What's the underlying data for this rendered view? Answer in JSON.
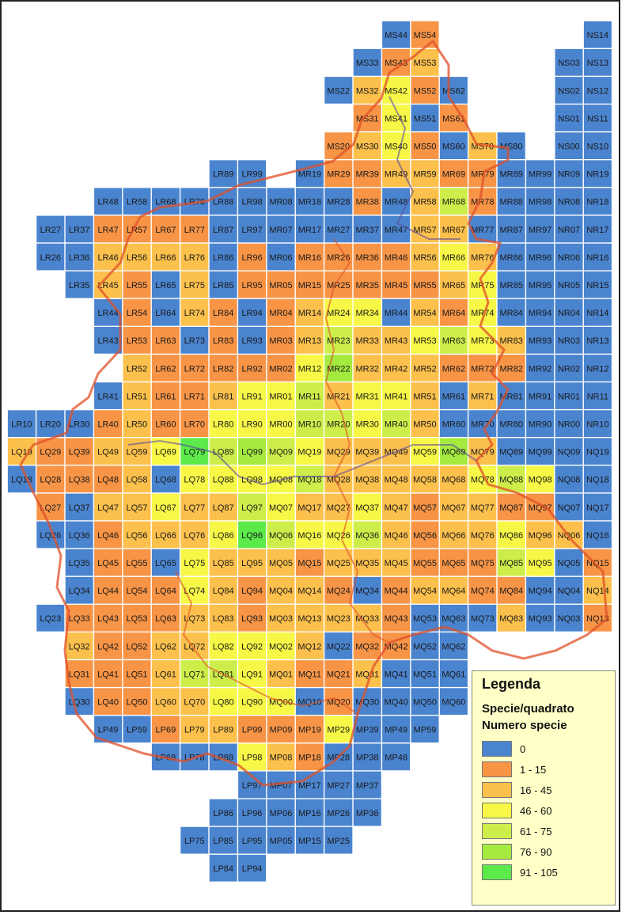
{
  "legend": {
    "title": "Legenda",
    "subtitle": "Specie/quadrato",
    "field": "Numero specie",
    "classes": [
      {
        "label": "0",
        "color": "#4a84cf"
      },
      {
        "label": "1 - 15",
        "color": "#f79446"
      },
      {
        "label": "16 - 45",
        "color": "#fcc04c"
      },
      {
        "label": "46 - 60",
        "color": "#f7f747"
      },
      {
        "label": "61 - 75",
        "color": "#cdee4a"
      },
      {
        "label": "76 - 90",
        "color": "#a4ea3f"
      },
      {
        "label": "91 - 105",
        "color": "#5cea4a"
      }
    ]
  },
  "boundary_color": "#e05028",
  "region_outline_color": "#5a4a9a",
  "grid_rows": [
    {
      "cells": [
        "MS44:0",
        "MS54:1",
        "NS14:0"
      ]
    },
    {
      "cells": [
        "MS33:0",
        "MS43:1",
        "MS53:2",
        "NS03:0",
        "NS13:0"
      ]
    },
    {
      "cells": [
        "MS22:0",
        "MS32:2",
        "MS42:3",
        "MS52:1",
        "MS62:0",
        "NS02:0",
        "NS12:0"
      ]
    },
    {
      "cells": [
        "MS31:1",
        "MS41:3",
        "MS51:0",
        "MS61:1",
        "NS01:0",
        "NS11:0"
      ]
    },
    {
      "cells": [
        "MS20:1",
        "MS30:2",
        "MS40:3",
        "MS50:1",
        "MS60:0",
        "MS70:2",
        "MS80:0",
        "NS00:0",
        "NS10:0"
      ]
    },
    {
      "cells": [
        "LR89:0",
        "LR99:0",
        "MR19:0",
        "MR29:1",
        "MR39:1",
        "MR49:2",
        "MR59:2",
        "MR69:1",
        "MR79:1",
        "MR89:0",
        "MR99:0",
        "NR09:0",
        "NR19:0"
      ]
    },
    {
      "cells": [
        "LR48:0",
        "LR58:0",
        "LR68:0",
        "LR78:0",
        "LR88:0",
        "LR98:0",
        "MR08:0",
        "MR18:0",
        "MR28:0",
        "MR38:1",
        "MR48:0",
        "MR58:2",
        "MR68:4",
        "MR78:1",
        "MR88:0",
        "MR98:0",
        "NR08:0",
        "NR18:0"
      ]
    },
    {
      "cells": [
        "LR27:0",
        "LR37:0",
        "LR47:1",
        "LR57:1",
        "LR67:1",
        "LR77:1",
        "LR87:0",
        "LR97:0",
        "MR07:0",
        "MR17:0",
        "MR27:0",
        "MR37:0",
        "MR47:0",
        "MR57:2",
        "MR67:2",
        "MR77:0",
        "MR87:0",
        "MR97:0",
        "NR07:0",
        "NR17:0"
      ]
    },
    {
      "cells": [
        "LR26:0",
        "LR36:0",
        "LR46:2",
        "LR56:2",
        "LR66:2",
        "LR76:2",
        "LR86:0",
        "LR96:1",
        "MR06:0",
        "MR16:1",
        "MR26:1",
        "MR36:1",
        "MR46:1",
        "MR56:2",
        "MR66:3",
        "MR76:2",
        "MR86:0",
        "MR96:0",
        "NR06:0",
        "NR16:0"
      ]
    },
    {
      "cells": [
        "LR35:0",
        "LR45:2",
        "LR55:1",
        "LR65:0",
        "LR75:2",
        "LR85:0",
        "LR95:1",
        "MR05:1",
        "MR15:1",
        "MR25:1",
        "MR35:1",
        "MR45:1",
        "MR55:1",
        "MR65:2",
        "MR75:3",
        "MR85:0",
        "MR95:0",
        "NR05:0",
        "NR15:0"
      ]
    },
    {
      "cells": [
        "LR44:0",
        "LR54:1",
        "LR64:0",
        "LR74:2",
        "LR84:1",
        "LR94:0",
        "MR04:1",
        "MR14:2",
        "MR24:3",
        "MR34:3",
        "MR44:0",
        "MR54:2",
        "MR64:1",
        "MR74:3",
        "MR84:0",
        "MR94:0",
        "NR04:0",
        "NR14:0"
      ]
    },
    {
      "cells": [
        "LR43:0",
        "LR53:1",
        "LR63:1",
        "LR73:0",
        "LR83:1",
        "LR93:0",
        "MR03:1",
        "MR13:2",
        "MR23:4",
        "MR33:2",
        "MR43:2",
        "MR53:3",
        "MR63:4",
        "MR73:3",
        "MR83:2",
        "MR93:0",
        "NR03:0",
        "NR13:0"
      ]
    },
    {
      "cells": [
        "LR52:2",
        "LR62:1",
        "LR72:1",
        "LR82:1",
        "LR92:1",
        "MR02:1",
        "MR12:3",
        "MR22:5",
        "MR32:2",
        "MR42:2",
        "MR52:2",
        "MR62:1",
        "MR72:1",
        "MR82:1",
        "MR92:0",
        "NR02:0",
        "NR12:0"
      ]
    },
    {
      "cells": [
        "LR41:0",
        "LR51:2",
        "LR61:1",
        "LR71:1",
        "LR81:2",
        "LR91:3",
        "MR01:3",
        "MR11:4",
        "MR21:2",
        "MR31:3",
        "MR41:3",
        "MR51:2",
        "MR61:0",
        "MR71:2",
        "MR81:0",
        "MR91:0",
        "NR01:0",
        "NR11:0"
      ]
    },
    {
      "cells": [
        "LR10:0",
        "LR20:0",
        "LR30:0",
        "LR40:1",
        "LR50:2",
        "LR60:1",
        "LR70:1",
        "LR80:3",
        "LR90:3",
        "MR00:3",
        "MR10:4",
        "MR20:4",
        "MR30:3",
        "MR40:4",
        "MR50:2",
        "MR60:0",
        "MR70:0",
        "MR80:0",
        "MR90:0",
        "NR00:0",
        "NR10:0"
      ]
    },
    {
      "cells": [
        "LQ19:2",
        "LQ29:1",
        "LQ39:1",
        "LQ49:2",
        "LQ59:2",
        "LQ69:3",
        "LQ79:6",
        "LQ89:4",
        "LQ99:5",
        "MQ09:4",
        "MQ19:3",
        "MQ29:2",
        "MQ39:2",
        "MQ49:2",
        "MQ59:3",
        "MQ69:5",
        "MQ79:2",
        "MQ89:0",
        "MQ99:0",
        "NQ09:0",
        "NQ19:0"
      ]
    },
    {
      "cells": [
        "LQ18:0",
        "LQ28:1",
        "LQ38:1",
        "LQ48:1",
        "LQ58:2",
        "LQ68:0",
        "LQ78:3",
        "LQ88:3",
        "LQ98:3",
        "MQ08:3",
        "MQ18:4",
        "MQ28:2",
        "MQ38:2",
        "MQ48:2",
        "MQ58:2",
        "MQ68:2",
        "MQ78:3",
        "MQ88:4",
        "MQ98:3",
        "NQ08:0",
        "NQ18:0"
      ]
    },
    {
      "cells": [
        "LQ27:1",
        "LQ37:0",
        "LQ47:2",
        "LQ57:2",
        "LQ67:3",
        "LQ77:2",
        "LQ87:2",
        "LQ97:4",
        "MQ07:3",
        "MQ17:2",
        "MQ27:2",
        "MQ37:3",
        "MQ47:2",
        "MQ57:1",
        "MQ67:2",
        "MQ77:2",
        "MQ87:1",
        "MQ97:1",
        "NQ07:0",
        "NQ17:0"
      ]
    },
    {
      "cells": [
        "LQ26:0",
        "LQ36:0",
        "LQ46:1",
        "LQ56:2",
        "LQ66:2",
        "LQ76:2",
        "LQ86:3",
        "LQ96:6",
        "MQ06:4",
        "MQ16:3",
        "MQ26:3",
        "MQ36:4",
        "MQ46:2",
        "MQ56:1",
        "MQ66:2",
        "MQ76:2",
        "MQ86:3",
        "MQ96:2",
        "NQ06:2",
        "NQ16:0"
      ]
    },
    {
      "cells": [
        "LQ35:0",
        "LQ45:1",
        "LQ55:1",
        "LQ65:0",
        "LQ75:3",
        "LQ85:2",
        "LQ95:2",
        "MQ05:2",
        "MQ15:1",
        "MQ25:2",
        "MQ35:2",
        "MQ45:2",
        "MQ55:1",
        "MQ65:1",
        "MQ75:1",
        "MQ85:4",
        "MQ95:3",
        "NQ05:0",
        "NQ15:1"
      ]
    },
    {
      "cells": [
        "LQ34:0",
        "LQ44:1",
        "LQ54:1",
        "LQ64:1",
        "LQ74:3",
        "LQ84:2",
        "LQ94:1",
        "MQ04:2",
        "MQ14:2",
        "MQ24:1",
        "MQ34:0",
        "MQ44:1",
        "MQ54:2",
        "MQ64:2",
        "MQ74:1",
        "MQ84:1",
        "MQ94:0",
        "NQ04:0",
        "NQ14:2"
      ]
    },
    {
      "cells": [
        "LQ23:0",
        "LQ33:1",
        "LQ43:1",
        "LQ53:1",
        "LQ63:1",
        "LQ73:2",
        "LQ83:2",
        "LQ93:1",
        "MQ03:2",
        "MQ13:2",
        "MQ23:2",
        "MQ33:2",
        "MQ43:1",
        "MQ53:0",
        "MQ63:0",
        "MQ73:0",
        "MQ83:2",
        "MQ93:0",
        "NQ03:0",
        "NQ13:1"
      ]
    },
    {
      "cells": [
        "LQ32:2",
        "LQ42:1",
        "LQ52:1",
        "LQ62:2",
        "LQ72:2",
        "LQ82:3",
        "LQ92:3",
        "MQ02:3",
        "MQ12:2",
        "MQ22:0",
        "MQ32:1",
        "MQ42:1",
        "MQ52:0",
        "MQ62:0"
      ]
    },
    {
      "cells": [
        "LQ31:1",
        "LQ41:1",
        "LQ51:1",
        "LQ61:2",
        "LQ71:4",
        "LQ81:4",
        "LQ91:3",
        "MQ01:2",
        "MQ11:1",
        "MQ21:1",
        "MQ31:2",
        "MQ41:0",
        "MQ51:0",
        "MQ61:0"
      ]
    },
    {
      "cells": [
        "LQ30:0",
        "LQ40:1",
        "LQ50:1",
        "LQ60:2",
        "LQ70:2",
        "LQ80:3",
        "LQ90:3",
        "MQ00:3",
        "MQ10:0",
        "MQ20:1",
        "MQ30:0",
        "MQ40:0",
        "MQ50:0",
        "MQ60:0"
      ]
    },
    {
      "cells": [
        "LP49:0",
        "LP59:0",
        "LP69:1",
        "LP79:2",
        "LP89:2",
        "LP99:1",
        "MP09:1",
        "MP19:1",
        "MP29:3",
        "MP39:0",
        "MP49:0",
        "MP59:0"
      ]
    },
    {
      "cells": [
        "LP68:0",
        "LP78:0",
        "LP88:0",
        "LP98:3",
        "MP08:2",
        "MP18:1",
        "MP28:0",
        "MP38:0",
        "MP48:0"
      ]
    },
    {
      "cells": [
        "LP97:0",
        "MP07:0",
        "MP17:0",
        "MP27:0",
        "MP37:0"
      ]
    },
    {
      "cells": [
        "LP86:0",
        "LP96:0",
        "MP06:0",
        "MP16:0",
        "MP26:0",
        "MP36:0"
      ]
    },
    {
      "cells": [
        "LP75:0",
        "LP85:0",
        "LP95:0",
        "MP05:0",
        "MP15:0",
        "MP25:0"
      ]
    },
    {
      "cells": [
        "LP84:0",
        "LP94:0"
      ]
    }
  ]
}
